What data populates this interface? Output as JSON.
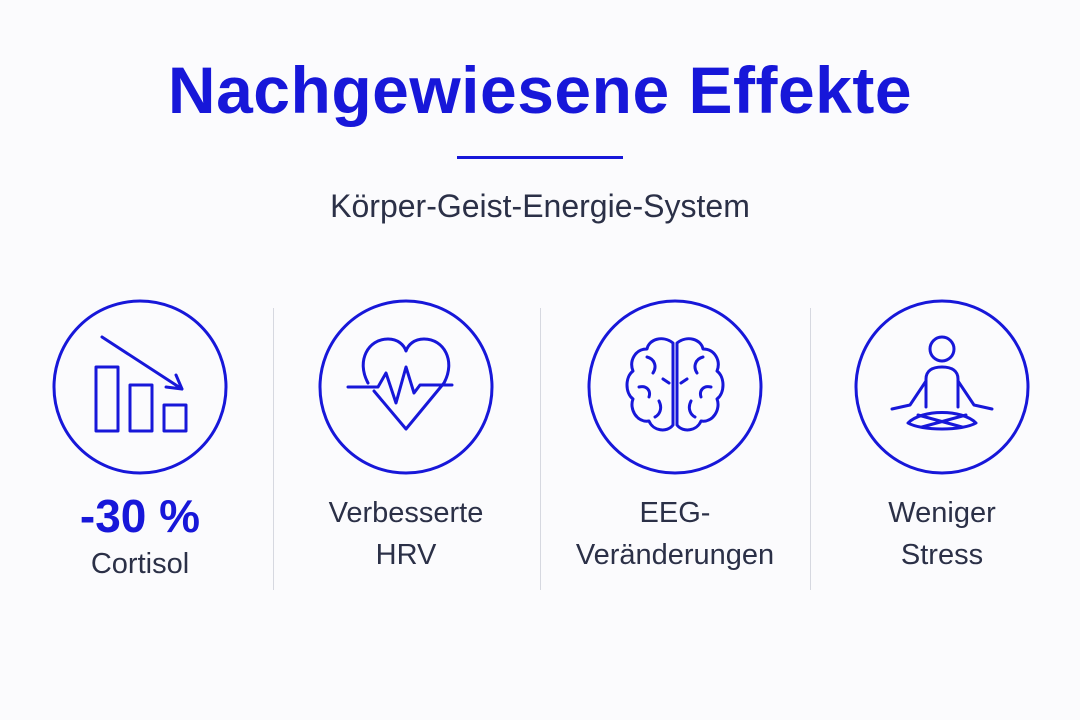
{
  "header": {
    "title": "Nachgewiesene Effekte",
    "subtitle": "Körper-Geist-Energie-System"
  },
  "items": [
    {
      "value": "-30 %",
      "lines": [
        "Cortisol"
      ]
    },
    {
      "lines": [
        "Verbesserte",
        "HRV"
      ]
    },
    {
      "lines": [
        "EEG-",
        "Veränderungen"
      ]
    },
    {
      "lines": [
        "Weniger",
        "Stress"
      ]
    }
  ]
}
